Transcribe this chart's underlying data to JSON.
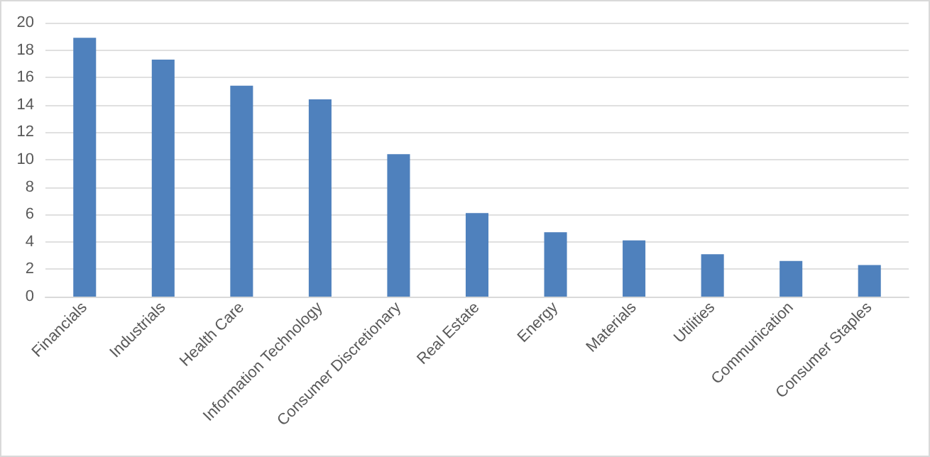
{
  "chart_data": {
    "type": "bar",
    "categories": [
      "Financials",
      "Industrials",
      "Health Care",
      "Information Technology",
      "Consumer Discretionary",
      "Real Estate",
      "Energy",
      "Materials",
      "Utilities",
      "Communication",
      "Consumer Staples"
    ],
    "values": [
      18.9,
      17.3,
      15.4,
      14.4,
      10.4,
      6.1,
      4.7,
      4.1,
      3.1,
      2.6,
      2.3
    ],
    "color": "#4f81bd",
    "ylim": [
      0,
      20
    ],
    "yticks": [
      0,
      2,
      4,
      6,
      8,
      10,
      12,
      14,
      16,
      18,
      20
    ],
    "grid": "y"
  }
}
